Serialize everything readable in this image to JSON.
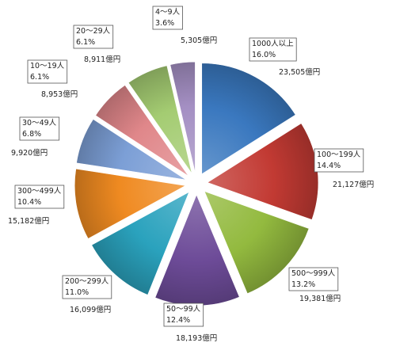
{
  "chart_data": {
    "type": "pie",
    "exploded": true,
    "legend": "none",
    "slices": [
      {
        "category": "1000人以上",
        "percent": "16.0%",
        "amount": "23,505億円",
        "value": 23505,
        "color": "#3a78bf"
      },
      {
        "category": "100〜199人",
        "percent": "14.4%",
        "amount": "21,127億円",
        "value": 21127,
        "color": "#c23a33"
      },
      {
        "category": "500〜999人",
        "percent": "13.2%",
        "amount": "19,381億円",
        "value": 19381,
        "color": "#93ba3f"
      },
      {
        "category": "50〜99人",
        "percent": "12.4%",
        "amount": "18,193億円",
        "value": 18193,
        "color": "#6d4b98"
      },
      {
        "category": "200〜299人",
        "percent": "11.0%",
        "amount": "16,099億円",
        "value": 16099,
        "color": "#2aa2bd"
      },
      {
        "category": "300〜499人",
        "percent": "10.4%",
        "amount": "15,182億円",
        "value": 15182,
        "color": "#ef8a21"
      },
      {
        "category": "30〜49人",
        "percent": "6.8%",
        "amount": "9,920億円",
        "value": 9920,
        "color": "#7c9fd6"
      },
      {
        "category": "10〜19人",
        "percent": "6.1%",
        "amount": "8,953億円",
        "value": 8953,
        "color": "#e0878a"
      },
      {
        "category": "20〜29人",
        "percent": "6.1%",
        "amount": "8,911億円",
        "value": 8911,
        "color": "#a4cc72"
      },
      {
        "category": "4〜9人",
        "percent": "3.6%",
        "amount": "5,305億円",
        "value": 5305,
        "color": "#a48fc3"
      }
    ]
  }
}
